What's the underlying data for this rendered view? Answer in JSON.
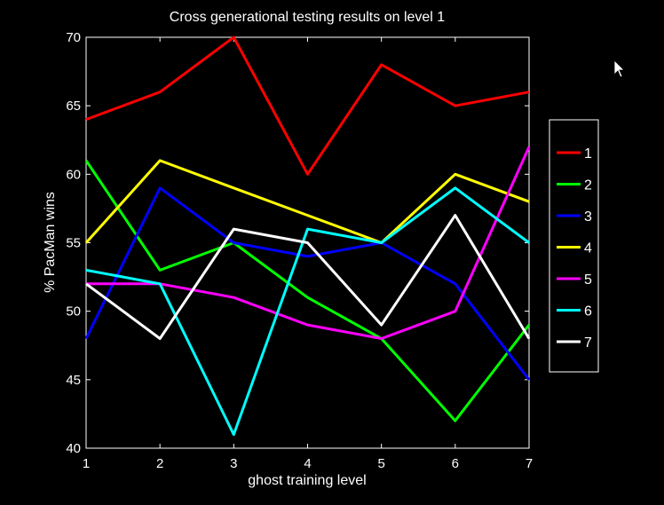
{
  "chart_data": {
    "type": "line",
    "title": "Cross generational testing results on level 1",
    "xlabel": "ghost training level",
    "ylabel": "% PacMan wins",
    "x": [
      1,
      2,
      3,
      4,
      5,
      6,
      7
    ],
    "xlim": [
      1,
      7
    ],
    "ylim": [
      40,
      70
    ],
    "xticks": [
      "1",
      "2",
      "3",
      "4",
      "5",
      "6",
      "7"
    ],
    "yticks": [
      "40",
      "45",
      "50",
      "55",
      "60",
      "65",
      "70"
    ],
    "grid": false,
    "legend_position": "right",
    "series": [
      {
        "name": "1",
        "color": "#ff0000",
        "values": [
          64,
          66,
          70,
          60,
          68,
          65,
          66
        ]
      },
      {
        "name": "2",
        "color": "#00ff00",
        "values": [
          61,
          53,
          55,
          51,
          48,
          42,
          49
        ]
      },
      {
        "name": "3",
        "color": "#0000ff",
        "values": [
          48,
          59,
          55,
          54,
          55,
          52,
          45
        ]
      },
      {
        "name": "4",
        "color": "#ffff00",
        "values": [
          55,
          61,
          59,
          57,
          55,
          60,
          58
        ]
      },
      {
        "name": "5",
        "color": "#ff00ff",
        "values": [
          52,
          52,
          51,
          49,
          48,
          50,
          62
        ]
      },
      {
        "name": "6",
        "color": "#00ffff",
        "values": [
          53,
          52,
          41,
          56,
          55,
          59,
          55
        ]
      },
      {
        "name": "7",
        "color": "#ffffff",
        "values": [
          52,
          48,
          56,
          55,
          49,
          57,
          48
        ]
      }
    ]
  }
}
